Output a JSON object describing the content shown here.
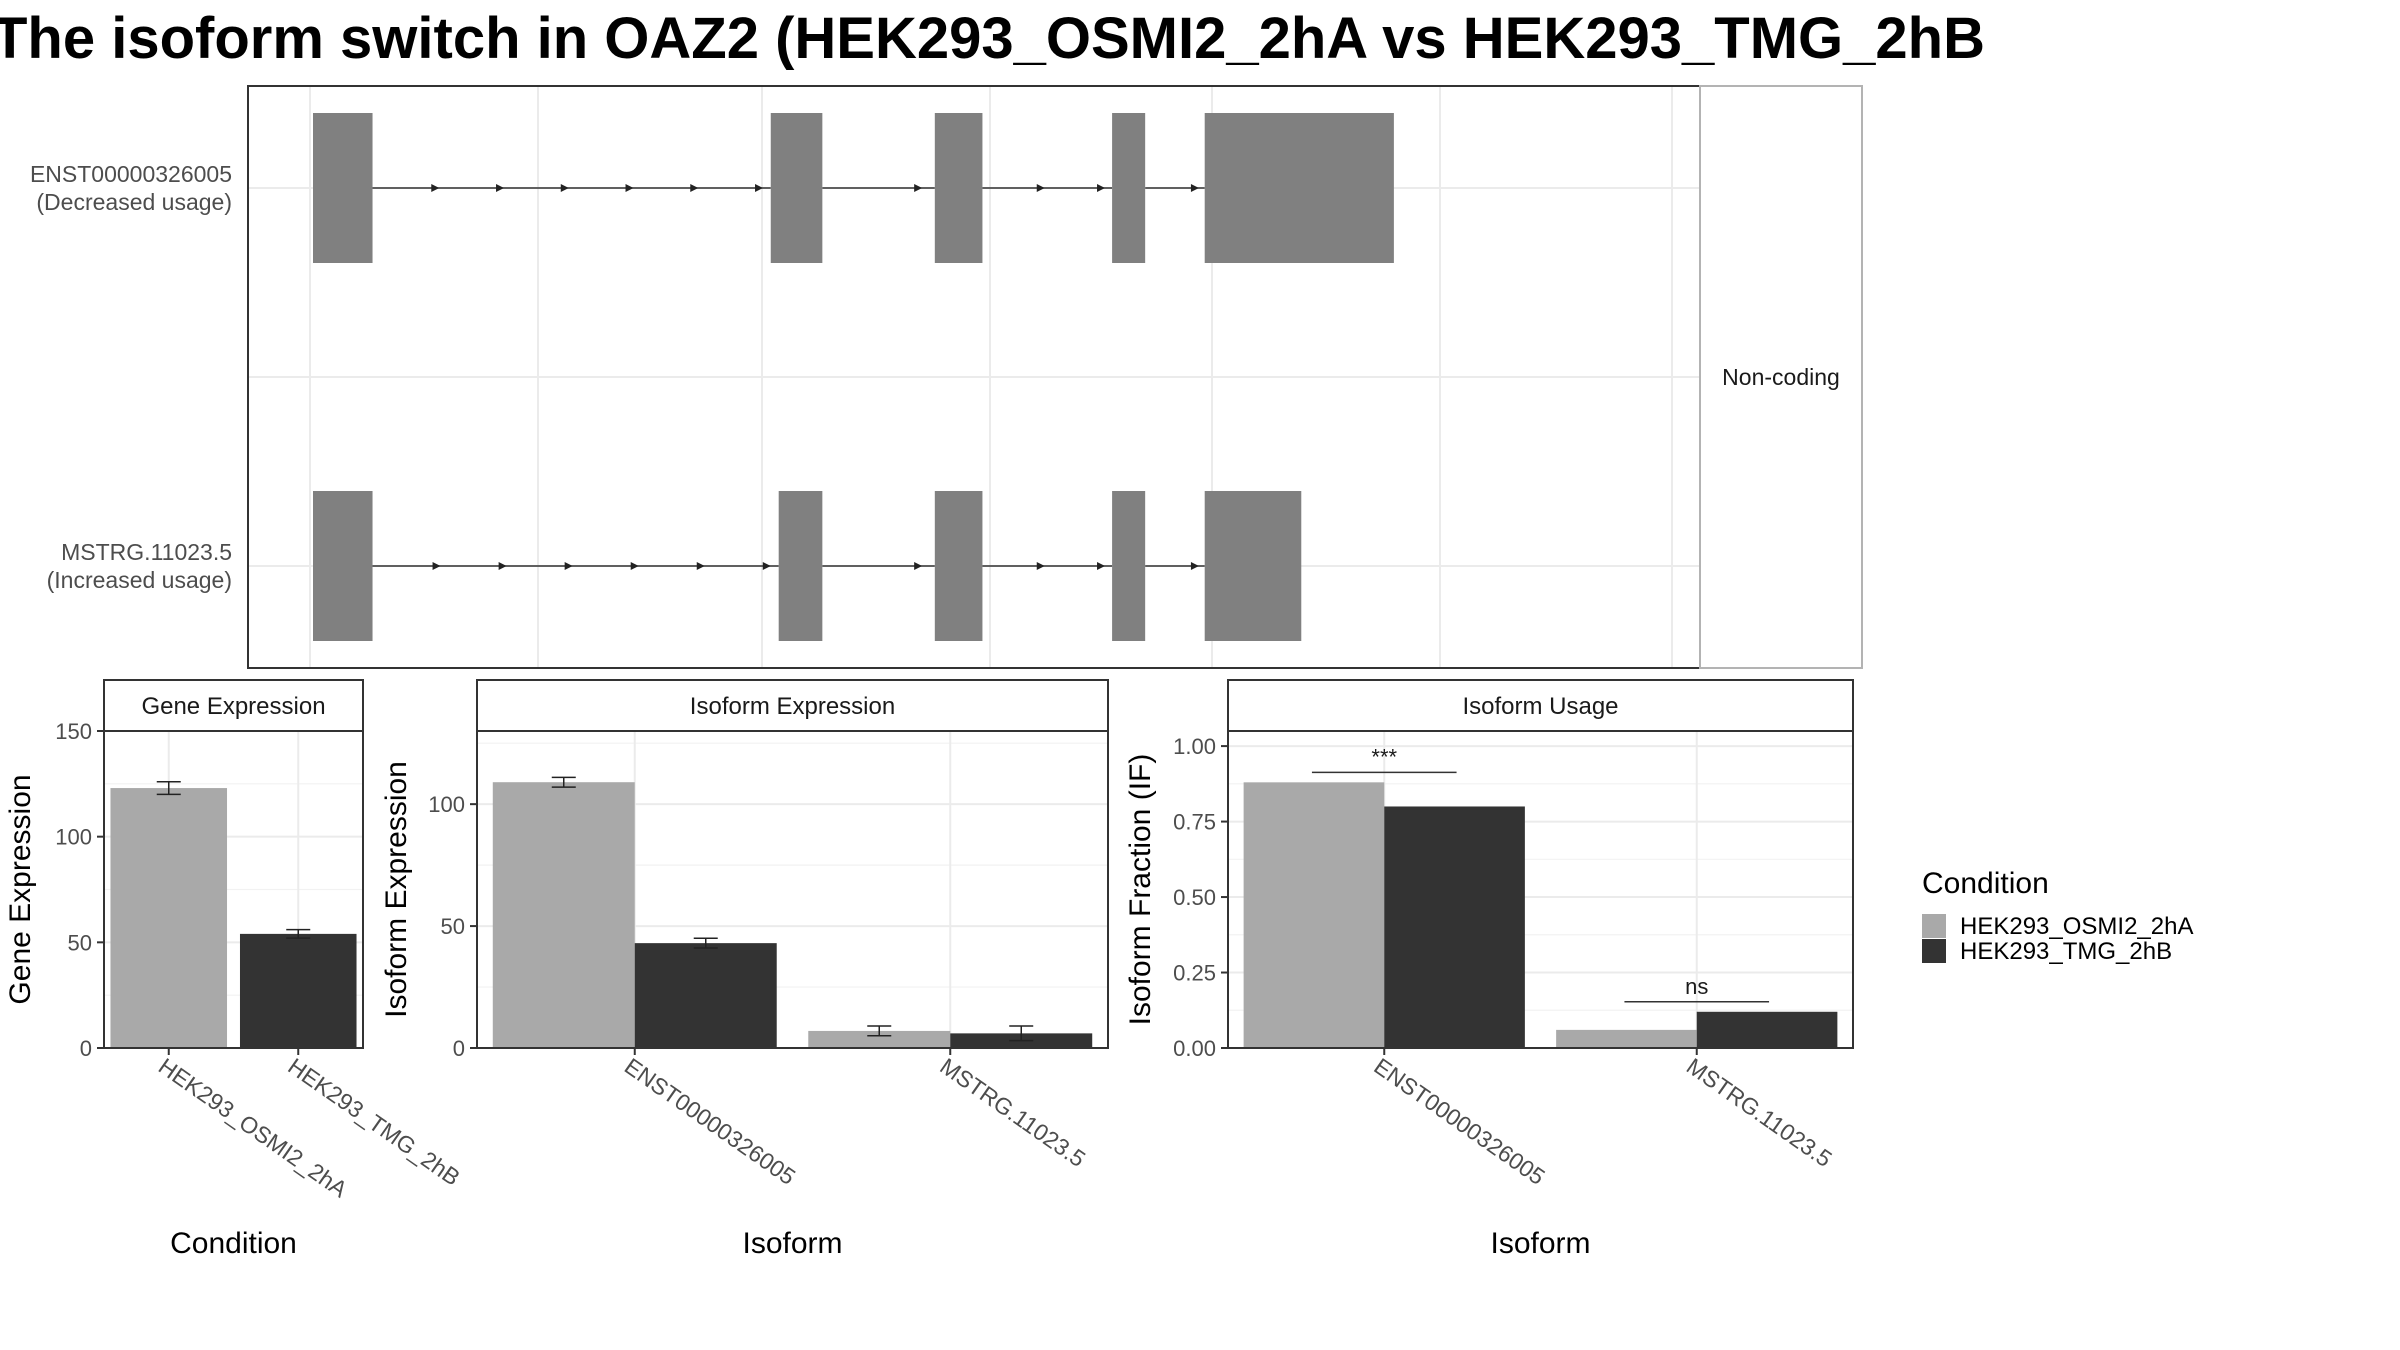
{
  "title": "The isoform switch in OAZ2 (HEK293_OSMI2_2hA vs HEK293_TMG_2hB",
  "colors": {
    "cond_a": "#a9a9a9",
    "cond_b": "#333333",
    "exon": "#808080",
    "grid": "#ebebeb",
    "frame": "#333333"
  },
  "chart_data": [
    {
      "type": "gene_structure",
      "facet_label": "Non-coding",
      "isoforms": [
        {
          "id": "ENST00000326005",
          "usage": "(Decreased usage)",
          "exons": [
            [
              0.0,
              0.045
            ],
            [
              0.346,
              0.385
            ],
            [
              0.47,
              0.506
            ],
            [
              0.604,
              0.629
            ],
            [
              0.674,
              0.817
            ]
          ]
        },
        {
          "id": "MSTRG.11023.5",
          "usage": "(Increased usage)",
          "exons": [
            [
              0.0,
              0.045
            ],
            [
              0.352,
              0.385
            ],
            [
              0.47,
              0.506
            ],
            [
              0.604,
              0.629
            ],
            [
              0.674,
              0.747
            ]
          ]
        }
      ]
    },
    {
      "type": "bar",
      "panel_title": "Gene Expression",
      "xlabel": "Condition",
      "ylabel": "Gene Expression",
      "ylim": [
        0,
        150
      ],
      "yticks": [
        0,
        50,
        100,
        150
      ],
      "categories": [
        "HEK293_OSMI2_2hA",
        "HEK293_TMG_2hB"
      ],
      "values": [
        123,
        54
      ],
      "errors": [
        3,
        2
      ]
    },
    {
      "type": "bar",
      "panel_title": "Isoform Expression",
      "xlabel": "Isoform",
      "ylabel": "Isoform Expression",
      "ylim": [
        0,
        130
      ],
      "yticks": [
        0,
        50,
        100
      ],
      "categories": [
        "ENST00000326005",
        "MSTRG.11023.5"
      ],
      "series": [
        {
          "name": "HEK293_OSMI2_2hA",
          "values": [
            109,
            7
          ],
          "errors": [
            2,
            2
          ]
        },
        {
          "name": "HEK293_TMG_2hB",
          "values": [
            43,
            6
          ],
          "errors": [
            2,
            3
          ]
        }
      ]
    },
    {
      "type": "bar",
      "panel_title": "Isoform Usage",
      "xlabel": "Isoform",
      "ylabel": "Isoform Fraction (IF)",
      "ylim": [
        0,
        1.05
      ],
      "yticks": [
        "0.00",
        "0.25",
        "0.50",
        "0.75",
        "1.00"
      ],
      "categories": [
        "ENST00000326005",
        "MSTRG.11023.5"
      ],
      "series": [
        {
          "name": "HEK293_OSMI2_2hA",
          "values": [
            0.88,
            0.06
          ]
        },
        {
          "name": "HEK293_TMG_2hB",
          "values": [
            0.8,
            0.12
          ]
        }
      ],
      "significance": [
        "***",
        "ns"
      ]
    }
  ],
  "legend": {
    "title": "Condition",
    "items": [
      {
        "label": "HEK293_OSMI2_2hA",
        "color": "#a9a9a9"
      },
      {
        "label": "HEK293_TMG_2hB",
        "color": "#333333"
      }
    ]
  }
}
